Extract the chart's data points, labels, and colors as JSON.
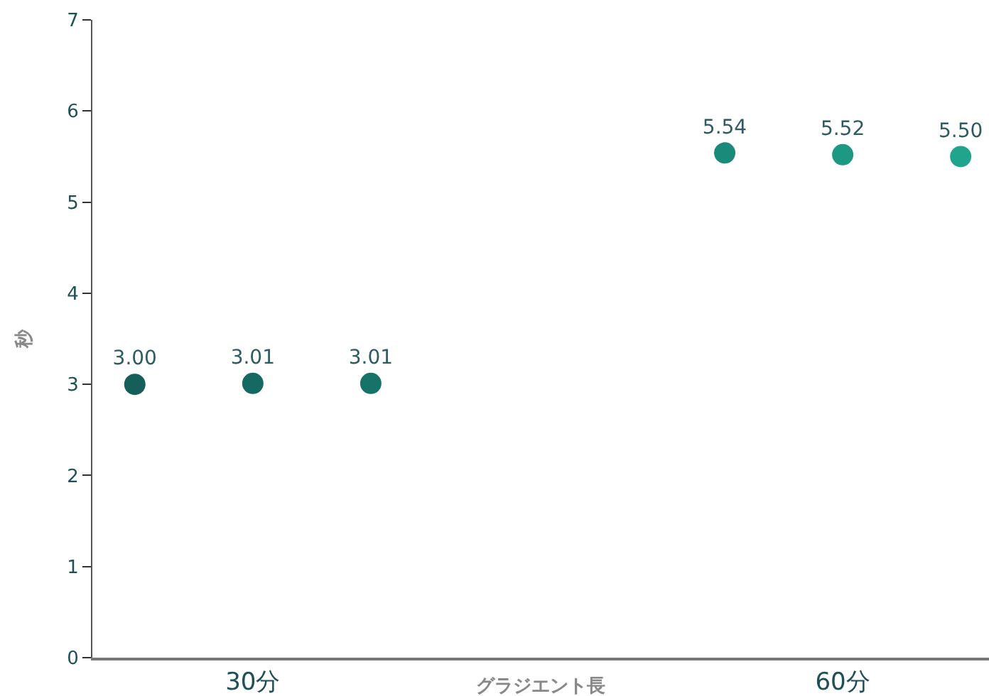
{
  "chart_data": {
    "type": "scatter",
    "xlabel": "グラジエント長",
    "ylabel": "秒",
    "categories": [
      null,
      "30分",
      null,
      null,
      null,
      null,
      "60分",
      null
    ],
    "values": [
      3.0,
      3.01,
      3.01,
      null,
      null,
      5.54,
      5.52,
      5.5
    ],
    "value_labels": [
      "3.00",
      "3.01",
      "3.01",
      null,
      null,
      "5.54",
      "5.52",
      "5.50"
    ],
    "colors": [
      "#155e5a",
      "#146962",
      "#17736a",
      "#000000",
      "#000000",
      "#1a8a7a",
      "#1c9883",
      "#20a58c"
    ],
    "ylim": [
      0,
      7
    ],
    "yticks": [
      0,
      1,
      2,
      3,
      4,
      5,
      6,
      7
    ],
    "marker": "circle",
    "grid": false,
    "legend": false
  }
}
